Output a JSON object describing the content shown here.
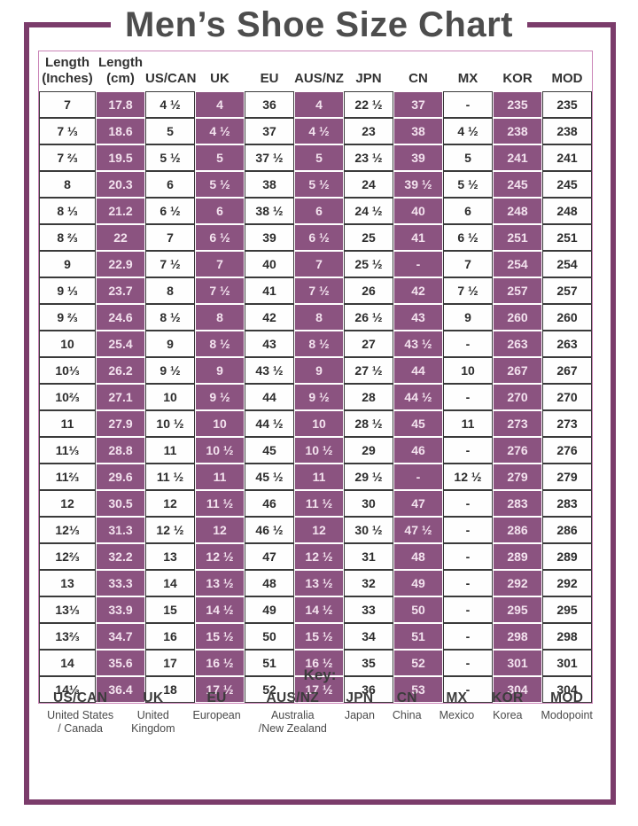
{
  "title": "Men’s Shoe Size Chart",
  "chart_data": {
    "type": "table",
    "title": "Men’s Shoe Size Chart",
    "columns": [
      {
        "label": "Length\n(Inches)",
        "highlighted": false
      },
      {
        "label": "Length\n(cm)",
        "highlighted": true
      },
      {
        "label": "US/CAN",
        "highlighted": false
      },
      {
        "label": "UK",
        "highlighted": true
      },
      {
        "label": "EU",
        "highlighted": false
      },
      {
        "label": "AUS/NZ",
        "highlighted": true
      },
      {
        "label": "JPN",
        "highlighted": false
      },
      {
        "label": "CN",
        "highlighted": true
      },
      {
        "label": "MX",
        "highlighted": false
      },
      {
        "label": "KOR",
        "highlighted": true
      },
      {
        "label": "MOD",
        "highlighted": false
      }
    ],
    "highlighted_columns": [
      "Length (cm)",
      "UK",
      "AUS/NZ",
      "CN",
      "KOR"
    ],
    "rows": [
      [
        "7",
        "17.8",
        "4 ½",
        "4",
        "36",
        "4",
        "22 ½",
        "37",
        "-",
        "235",
        "235"
      ],
      [
        "7 ⅓",
        "18.6",
        "5",
        "4 ½",
        "37",
        "4 ½",
        "23",
        "38",
        "4 ½",
        "238",
        "238"
      ],
      [
        "7 ⅔",
        "19.5",
        "5 ½",
        "5",
        "37 ½",
        "5",
        "23 ½",
        "39",
        "5",
        "241",
        "241"
      ],
      [
        "8",
        "20.3",
        "6",
        "5 ½",
        "38",
        "5 ½",
        "24",
        "39 ½",
        "5 ½",
        "245",
        "245"
      ],
      [
        "8 ⅓",
        "21.2",
        "6 ½",
        "6",
        "38 ½",
        "6",
        "24 ½",
        "40",
        "6",
        "248",
        "248"
      ],
      [
        "8 ⅔",
        "22",
        "7",
        "6 ½",
        "39",
        "6 ½",
        "25",
        "41",
        "6 ½",
        "251",
        "251"
      ],
      [
        "9",
        "22.9",
        "7 ½",
        "7",
        "40",
        "7",
        "25 ½",
        "-",
        "7",
        "254",
        "254"
      ],
      [
        "9 ⅓",
        "23.7",
        "8",
        "7 ½",
        "41",
        "7 ½",
        "26",
        "42",
        "7 ½",
        "257",
        "257"
      ],
      [
        "9 ⅔",
        "24.6",
        "8 ½",
        "8",
        "42",
        "8",
        "26 ½",
        "43",
        "9",
        "260",
        "260"
      ],
      [
        "10",
        "25.4",
        "9",
        "8 ½",
        "43",
        "8 ½",
        "27",
        "43 ½",
        "-",
        "263",
        "263"
      ],
      [
        "10⅓",
        "26.2",
        "9 ½",
        "9",
        "43 ½",
        "9",
        "27 ½",
        "44",
        "10",
        "267",
        "267"
      ],
      [
        "10⅔",
        "27.1",
        "10",
        "9 ½",
        "44",
        "9 ½",
        "28",
        "44 ½",
        "-",
        "270",
        "270"
      ],
      [
        "11",
        "27.9",
        "10 ½",
        "10",
        "44 ½",
        "10",
        "28 ½",
        "45",
        "11",
        "273",
        "273"
      ],
      [
        "11⅓",
        "28.8",
        "11",
        "10 ½",
        "45",
        "10 ½",
        "29",
        "46",
        "-",
        "276",
        "276"
      ],
      [
        "11⅔",
        "29.6",
        "11 ½",
        "11",
        "45 ½",
        "11",
        "29 ½",
        "-",
        "12 ½",
        "279",
        "279"
      ],
      [
        "12",
        "30.5",
        "12",
        "11 ½",
        "46",
        "11 ½",
        "30",
        "47",
        "-",
        "283",
        "283"
      ],
      [
        "12⅓",
        "31.3",
        "12 ½",
        "12",
        "46 ½",
        "12",
        "30 ½",
        "47 ½",
        "-",
        "286",
        "286"
      ],
      [
        "12⅔",
        "32.2",
        "13",
        "12 ½",
        "47",
        "12 ½",
        "31",
        "48",
        "-",
        "289",
        "289"
      ],
      [
        "13",
        "33.3",
        "14",
        "13 ½",
        "48",
        "13 ½",
        "32",
        "49",
        "-",
        "292",
        "292"
      ],
      [
        "13⅓",
        "33.9",
        "15",
        "14 ½",
        "49",
        "14 ½",
        "33",
        "50",
        "-",
        "295",
        "295"
      ],
      [
        "13⅔",
        "34.7",
        "16",
        "15 ½",
        "50",
        "15 ½",
        "34",
        "51",
        "-",
        "298",
        "298"
      ],
      [
        "14",
        "35.6",
        "17",
        "16 ½",
        "51",
        "16 ½",
        "35",
        "52",
        "-",
        "301",
        "301"
      ],
      [
        "14⅓",
        "36.4",
        "18",
        "17 ½",
        "52",
        "17 ½",
        "36",
        "53",
        "-",
        "304",
        "304"
      ]
    ]
  },
  "key": {
    "title": "Key:",
    "entries": [
      {
        "abbr": "US/CAN",
        "meaning": "United States\n/ Canada"
      },
      {
        "abbr": "UK",
        "meaning": "United\nKingdom"
      },
      {
        "abbr": "EU",
        "meaning": "European"
      },
      {
        "abbr": "AUS/NZ",
        "meaning": "Australia\n/New Zealand"
      },
      {
        "abbr": "JPN",
        "meaning": "Japan"
      },
      {
        "abbr": "CN",
        "meaning": "China"
      },
      {
        "abbr": "MX",
        "meaning": "Mexico"
      },
      {
        "abbr": "KOR",
        "meaning": "Korea"
      },
      {
        "abbr": "MOD",
        "meaning": "Modopoint"
      }
    ]
  },
  "colors": {
    "frame": "#7b3c6b",
    "highlight": "#8b5380",
    "highlight_text": "#f3e2ee",
    "text": "#2d2d2d",
    "title_text": "#4d4d4d",
    "key_text": "#3c3c3c",
    "table_outline": "#ca84b7"
  }
}
